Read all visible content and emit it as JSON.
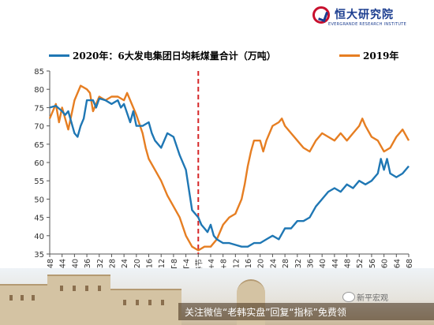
{
  "brand": {
    "name_cn": "恒大研究院",
    "name_en": "EVERGRANDE RESEARCH INSTITUTE",
    "color": "#1a3c8f",
    "accent": "#c8102e"
  },
  "legend": {
    "series_2020": "2020年：6大发电集团日均耗煤量合计（万吨）",
    "series_2019": "2019年"
  },
  "footer": {
    "ribbon_text": "关注微信“老韩实盘”回复“指标”免费领",
    "wechat_text": "新平宏观"
  },
  "chart_data": {
    "type": "line",
    "title": "",
    "xlabel": "",
    "ylabel": "",
    "ylim": [
      35,
      85
    ],
    "yticks": [
      35,
      40,
      45,
      50,
      55,
      60,
      65,
      70,
      75,
      80,
      85
    ],
    "x_tick_labels": [
      "T-48",
      "T-44",
      "T-40",
      "T-36",
      "T-32",
      "T-28",
      "T-24",
      "T-20",
      "T-16",
      "T-12",
      "T-8",
      "T-4",
      "春节",
      "T+4",
      "T+8",
      "T+12",
      "T+16",
      "T+20",
      "T+24",
      "T+28",
      "T+32",
      "T+36",
      "T+40",
      "T+44",
      "T+48",
      "T+52",
      "T+56",
      "T+60",
      "T+64",
      "T+68"
    ],
    "x_range": [
      -48,
      68
    ],
    "event_marker": {
      "x": 0,
      "color": "#d62728",
      "style": "dashed"
    },
    "grid": false,
    "series": [
      {
        "name": "2020年：6大发电集团日均耗煤量合计（万吨）",
        "color": "#1f77b4",
        "points": [
          [
            -48,
            75
          ],
          [
            -46,
            75.5
          ],
          [
            -44,
            74
          ],
          [
            -43,
            73
          ],
          [
            -42,
            74
          ],
          [
            -40,
            68
          ],
          [
            -39,
            67
          ],
          [
            -38,
            70
          ],
          [
            -37,
            72
          ],
          [
            -36,
            77
          ],
          [
            -34,
            77
          ],
          [
            -33,
            75
          ],
          [
            -32,
            77.5
          ],
          [
            -30,
            77
          ],
          [
            -28,
            76
          ],
          [
            -26,
            77
          ],
          [
            -25,
            75
          ],
          [
            -24,
            76
          ],
          [
            -22,
            71
          ],
          [
            -21,
            74
          ],
          [
            -20,
            70
          ],
          [
            -18,
            70
          ],
          [
            -16,
            71
          ],
          [
            -15,
            68
          ],
          [
            -14,
            66
          ],
          [
            -12,
            64
          ],
          [
            -10,
            68
          ],
          [
            -8,
            67
          ],
          [
            -6,
            62
          ],
          [
            -4,
            58
          ],
          [
            -2,
            47
          ],
          [
            0,
            45
          ],
          [
            1,
            43
          ],
          [
            2,
            42
          ],
          [
            3,
            41
          ],
          [
            4,
            43
          ],
          [
            5,
            40
          ],
          [
            6,
            39
          ],
          [
            8,
            38
          ],
          [
            10,
            38
          ],
          [
            12,
            37.5
          ],
          [
            14,
            37
          ],
          [
            16,
            37
          ],
          [
            18,
            38
          ],
          [
            20,
            38
          ],
          [
            22,
            39
          ],
          [
            24,
            40
          ],
          [
            26,
            39
          ],
          [
            28,
            42
          ],
          [
            30,
            42
          ],
          [
            32,
            44
          ],
          [
            34,
            44
          ],
          [
            36,
            45
          ],
          [
            38,
            48
          ],
          [
            40,
            50
          ],
          [
            42,
            52
          ],
          [
            44,
            53
          ],
          [
            46,
            52
          ],
          [
            48,
            54
          ],
          [
            50,
            53
          ],
          [
            52,
            55
          ],
          [
            54,
            54
          ],
          [
            56,
            55
          ],
          [
            58,
            57
          ],
          [
            59,
            61
          ],
          [
            60,
            58
          ],
          [
            61,
            61
          ],
          [
            62,
            57
          ],
          [
            64,
            56
          ],
          [
            66,
            57
          ],
          [
            68,
            59
          ]
        ]
      },
      {
        "name": "2019年",
        "color": "#e67e22",
        "points": [
          [
            -48,
            72
          ],
          [
            -46,
            76
          ],
          [
            -45,
            71
          ],
          [
            -44,
            75
          ],
          [
            -42,
            69
          ],
          [
            -41,
            73
          ],
          [
            -40,
            77
          ],
          [
            -38,
            81
          ],
          [
            -36,
            80
          ],
          [
            -35,
            79
          ],
          [
            -34,
            74
          ],
          [
            -32,
            78
          ],
          [
            -30,
            77
          ],
          [
            -28,
            78
          ],
          [
            -26,
            78
          ],
          [
            -24,
            77
          ],
          [
            -23,
            79
          ],
          [
            -22,
            77
          ],
          [
            -20,
            73
          ],
          [
            -18,
            68
          ],
          [
            -17,
            64
          ],
          [
            -16,
            61
          ],
          [
            -14,
            58
          ],
          [
            -12,
            55
          ],
          [
            -10,
            51
          ],
          [
            -8,
            48
          ],
          [
            -6,
            45
          ],
          [
            -4,
            40
          ],
          [
            -2,
            37
          ],
          [
            0,
            36
          ],
          [
            2,
            37
          ],
          [
            4,
            37
          ],
          [
            6,
            39
          ],
          [
            8,
            43
          ],
          [
            10,
            45
          ],
          [
            12,
            46
          ],
          [
            14,
            50
          ],
          [
            15,
            54
          ],
          [
            16,
            59
          ],
          [
            17,
            63
          ],
          [
            18,
            66
          ],
          [
            20,
            66
          ],
          [
            21,
            63
          ],
          [
            22,
            66
          ],
          [
            24,
            70
          ],
          [
            26,
            71
          ],
          [
            27,
            72
          ],
          [
            28,
            70
          ],
          [
            30,
            68
          ],
          [
            32,
            66
          ],
          [
            34,
            64
          ],
          [
            36,
            63
          ],
          [
            38,
            66
          ],
          [
            40,
            68
          ],
          [
            42,
            67
          ],
          [
            44,
            66
          ],
          [
            46,
            68
          ],
          [
            48,
            66
          ],
          [
            50,
            68
          ],
          [
            52,
            70
          ],
          [
            53,
            72
          ],
          [
            54,
            70
          ],
          [
            56,
            67
          ],
          [
            58,
            66
          ],
          [
            60,
            63
          ],
          [
            62,
            64
          ],
          [
            64,
            67
          ],
          [
            66,
            69
          ],
          [
            68,
            66
          ]
        ]
      }
    ]
  }
}
